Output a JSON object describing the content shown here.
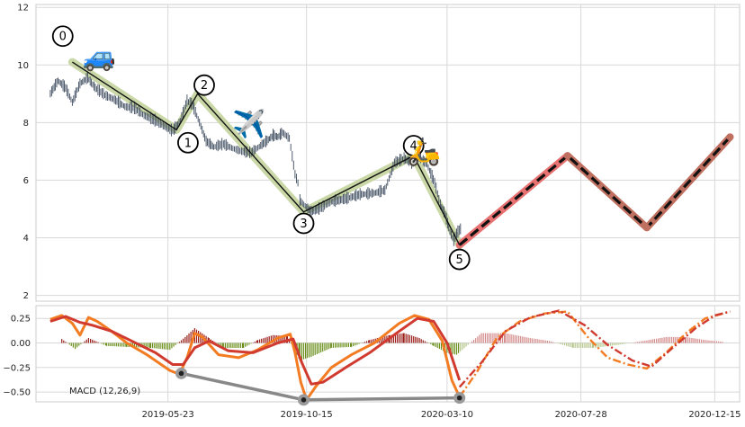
{
  "chart_data": [
    {
      "type": "line",
      "subtype": "price-with-wave-pattern",
      "title": "",
      "xlabel": "",
      "ylabel": "",
      "ylim": [
        1.8,
        12.1
      ],
      "yticks": [
        2,
        4,
        6,
        8,
        10,
        12
      ],
      "grid": true,
      "legend": "none",
      "series": [
        {
          "role": "price-candles",
          "points": [
            [
              "2019-01-20",
              9.0
            ],
            [
              "2019-01-28",
              9.45
            ],
            [
              "2019-02-05",
              9.2
            ],
            [
              "2019-02-12",
              8.7
            ],
            [
              "2019-02-20",
              9.35
            ],
            [
              "2019-02-28",
              9.55
            ],
            [
              "2019-03-08",
              9.2
            ],
            [
              "2019-03-18",
              8.95
            ],
            [
              "2019-03-28",
              8.8
            ],
            [
              "2019-04-08",
              8.55
            ],
            [
              "2019-04-18",
              8.5
            ],
            [
              "2019-04-28",
              8.25
            ],
            [
              "2019-05-08",
              8.1
            ],
            [
              "2019-05-18",
              7.9
            ],
            [
              "2019-05-28",
              7.7
            ],
            [
              "2019-06-05",
              8.05
            ],
            [
              "2019-06-12",
              8.75
            ],
            [
              "2019-06-18",
              8.6
            ],
            [
              "2019-06-25",
              8.0
            ],
            [
              "2019-07-02",
              7.35
            ],
            [
              "2019-07-10",
              7.15
            ],
            [
              "2019-07-20",
              7.25
            ],
            [
              "2019-07-30",
              7.1
            ],
            [
              "2019-08-08",
              7.0
            ],
            [
              "2019-08-18",
              6.95
            ],
            [
              "2019-08-28",
              7.2
            ],
            [
              "2019-09-05",
              7.4
            ],
            [
              "2019-09-10",
              7.55
            ],
            [
              "2019-09-15",
              7.5
            ],
            [
              "2019-09-20",
              7.65
            ],
            [
              "2019-09-27",
              7.45
            ],
            [
              "2019-10-03",
              6.2
            ],
            [
              "2019-10-06",
              5.9
            ],
            [
              "2019-10-08",
              5.3
            ],
            [
              "2019-10-15",
              5.05
            ],
            [
              "2019-10-20",
              4.9
            ],
            [
              "2019-10-28",
              5.0
            ],
            [
              "2019-11-10",
              5.25
            ],
            [
              "2019-11-25",
              5.35
            ],
            [
              "2019-12-10",
              5.5
            ],
            [
              "2019-12-25",
              5.55
            ],
            [
              "2020-01-05",
              5.65
            ],
            [
              "2020-01-15",
              6.6
            ],
            [
              "2020-01-25",
              6.75
            ],
            [
              "2020-02-02",
              6.6
            ],
            [
              "2020-02-10",
              6.8
            ],
            [
              "2020-02-18",
              6.55
            ],
            [
              "2020-02-26",
              5.9
            ],
            [
              "2020-03-03",
              5.15
            ],
            [
              "2020-03-08",
              4.8
            ],
            [
              "2020-03-13",
              4.2
            ],
            [
              "2020-03-17",
              3.9
            ],
            [
              "2020-03-20",
              4.15
            ],
            [
              "2020-03-24",
              4.3
            ],
            [
              "2020-03-26",
              4.1
            ]
          ]
        },
        {
          "role": "historical-wave",
          "color": "#111111",
          "band_color": "#c9d8a6",
          "points": [
            [
              "2019-02-12",
              10.1
            ],
            [
              "2019-06-01",
              7.75
            ],
            [
              "2019-06-23",
              9.0
            ],
            [
              "2019-10-12",
              4.9
            ],
            [
              "2020-02-04",
              6.85
            ],
            [
              "2020-03-23",
              3.75
            ]
          ]
        },
        {
          "role": "projected-wave",
          "color": "#111111",
          "band_color_first": "#e87272",
          "band_color": "#c07060",
          "dash": true,
          "points": [
            [
              "2020-03-23",
              3.75
            ],
            [
              "2020-07-14",
              6.85
            ],
            [
              "2020-10-05",
              4.35
            ],
            [
              "2020-12-31",
              7.5
            ]
          ]
        }
      ],
      "wave_labels": [
        {
          "label": "0",
          "date": "2019-02-02",
          "y": 11.0
        },
        {
          "label": "1",
          "date": "2019-06-13",
          "y": 7.3
        },
        {
          "label": "2",
          "date": "2019-06-30",
          "y": 9.3
        },
        {
          "label": "3",
          "date": "2019-10-12",
          "y": 4.5
        },
        {
          "label": "4",
          "date": "2020-02-04",
          "y": 7.2
        },
        {
          "label": "5",
          "date": "2020-03-23",
          "y": 3.25
        }
      ],
      "emoji": [
        {
          "name": "car-icon",
          "glyph": "🚙",
          "date": "2019-03-12",
          "y": 10.25
        },
        {
          "name": "airplane-icon",
          "glyph": "✈️",
          "date": "2019-08-16",
          "y": 7.9
        },
        {
          "name": "scooter-icon",
          "glyph": "🛵",
          "date": "2020-02-15",
          "y": 6.95
        }
      ]
    },
    {
      "type": "line",
      "subtype": "macd",
      "title": "",
      "annotation": "MACD (12,26,9)",
      "ylim": [
        -0.6,
        0.38
      ],
      "yticks": [
        0.25,
        0.0,
        -0.25,
        -0.5
      ],
      "ytick_labels": [
        "0.25",
        "0.00",
        "−0.25",
        "−0.50"
      ],
      "x_ticks": [
        "2019-05-23",
        "2019-10-15",
        "2020-03-10",
        "2020-07-28",
        "2020-12-15"
      ],
      "grid": true,
      "series": [
        {
          "role": "macd-line",
          "color": "#f37c22",
          "points": [
            [
              "2019-01-20",
              0.24
            ],
            [
              "2019-02-01",
              0.28
            ],
            [
              "2019-02-12",
              0.2
            ],
            [
              "2019-02-20",
              0.08
            ],
            [
              "2019-03-01",
              0.26
            ],
            [
              "2019-03-10",
              0.22
            ],
            [
              "2019-03-25",
              0.12
            ],
            [
              "2019-04-10",
              0.0
            ],
            [
              "2019-05-01",
              -0.12
            ],
            [
              "2019-05-25",
              -0.28
            ],
            [
              "2019-06-04",
              -0.32
            ],
            [
              "2019-06-12",
              -0.15
            ],
            [
              "2019-06-20",
              0.1
            ],
            [
              "2019-06-28",
              0.06
            ],
            [
              "2019-07-15",
              -0.12
            ],
            [
              "2019-08-05",
              -0.15
            ],
            [
              "2019-08-25",
              -0.07
            ],
            [
              "2019-09-15",
              0.05
            ],
            [
              "2019-09-28",
              0.09
            ],
            [
              "2019-10-03",
              -0.1
            ],
            [
              "2019-10-09",
              -0.4
            ],
            [
              "2019-10-15",
              -0.58
            ],
            [
              "2019-10-25",
              -0.44
            ],
            [
              "2019-11-10",
              -0.25
            ],
            [
              "2019-12-01",
              -0.12
            ],
            [
              "2019-12-25",
              0.0
            ],
            [
              "2020-01-20",
              0.2
            ],
            [
              "2020-02-05",
              0.28
            ],
            [
              "2020-02-20",
              0.24
            ],
            [
              "2020-03-05",
              0.02
            ],
            [
              "2020-03-15",
              -0.38
            ],
            [
              "2020-03-23",
              -0.55
            ]
          ]
        },
        {
          "role": "signal-line",
          "color": "#d03a2f",
          "points": [
            [
              "2019-01-20",
              0.22
            ],
            [
              "2019-02-05",
              0.27
            ],
            [
              "2019-02-20",
              0.21
            ],
            [
              "2019-03-05",
              0.18
            ],
            [
              "2019-03-25",
              0.12
            ],
            [
              "2019-04-15",
              0.02
            ],
            [
              "2019-05-10",
              -0.1
            ],
            [
              "2019-05-28",
              -0.22
            ],
            [
              "2019-06-08",
              -0.22
            ],
            [
              "2019-06-20",
              -0.05
            ],
            [
              "2019-07-05",
              0.02
            ],
            [
              "2019-07-25",
              -0.08
            ],
            [
              "2019-08-20",
              -0.1
            ],
            [
              "2019-09-15",
              0.0
            ],
            [
              "2019-10-01",
              0.04
            ],
            [
              "2019-10-10",
              -0.2
            ],
            [
              "2019-10-20",
              -0.42
            ],
            [
              "2019-11-01",
              -0.4
            ],
            [
              "2019-11-25",
              -0.25
            ],
            [
              "2019-12-20",
              -0.1
            ],
            [
              "2020-01-20",
              0.12
            ],
            [
              "2020-02-08",
              0.25
            ],
            [
              "2020-02-25",
              0.22
            ],
            [
              "2020-03-10",
              0.0
            ],
            [
              "2020-03-23",
              -0.38
            ]
          ]
        },
        {
          "role": "macd-projection",
          "color": "#f37c22",
          "dash": true,
          "points": [
            [
              "2020-03-23",
              -0.55
            ],
            [
              "2020-04-10",
              -0.3
            ],
            [
              "2020-05-01",
              0.05
            ],
            [
              "2020-05-25",
              0.22
            ],
            [
              "2020-06-20",
              0.3
            ],
            [
              "2020-07-14",
              0.32
            ],
            [
              "2020-08-05",
              0.05
            ],
            [
              "2020-08-25",
              -0.15
            ],
            [
              "2020-09-15",
              -0.22
            ],
            [
              "2020-10-05",
              -0.26
            ],
            [
              "2020-10-25",
              -0.1
            ],
            [
              "2020-11-15",
              0.1
            ],
            [
              "2020-12-05",
              0.25
            ],
            [
              "2020-12-31",
              0.32
            ]
          ]
        },
        {
          "role": "signal-projection",
          "color": "#d03a2f",
          "dash": true,
          "points": [
            [
              "2020-03-23",
              -0.45
            ],
            [
              "2020-04-15",
              -0.2
            ],
            [
              "2020-05-10",
              0.12
            ],
            [
              "2020-06-05",
              0.26
            ],
            [
              "2020-07-05",
              0.33
            ],
            [
              "2020-08-01",
              0.18
            ],
            [
              "2020-08-25",
              -0.02
            ],
            [
              "2020-09-20",
              -0.18
            ],
            [
              "2020-10-10",
              -0.24
            ],
            [
              "2020-11-01",
              -0.05
            ],
            [
              "2020-11-25",
              0.15
            ],
            [
              "2020-12-15",
              0.28
            ],
            [
              "2020-12-31",
              0.32
            ]
          ]
        },
        {
          "role": "divergence-line",
          "color": "#888888",
          "points": [
            [
              "2019-06-06",
              -0.31
            ],
            [
              "2019-10-12",
              -0.58
            ],
            [
              "2020-03-23",
              -0.56
            ]
          ]
        }
      ],
      "histogram": [
        [
          "2019-02-01",
          0.04
        ],
        [
          "2019-02-15",
          -0.06
        ],
        [
          "2019-03-01",
          0.05
        ],
        [
          "2019-03-20",
          -0.03
        ],
        [
          "2019-04-10",
          -0.04
        ],
        [
          "2019-05-05",
          -0.05
        ],
        [
          "2019-05-25",
          -0.07
        ],
        [
          "2019-06-10",
          0.06
        ],
        [
          "2019-06-20",
          0.15
        ],
        [
          "2019-07-05",
          0.05
        ],
        [
          "2019-07-20",
          -0.05
        ],
        [
          "2019-08-10",
          -0.05
        ],
        [
          "2019-08-25",
          0.03
        ],
        [
          "2019-09-10",
          0.08
        ],
        [
          "2019-09-25",
          0.07
        ],
        [
          "2019-10-08",
          -0.18
        ],
        [
          "2019-10-20",
          -0.14
        ],
        [
          "2019-11-10",
          -0.05
        ],
        [
          "2019-12-01",
          -0.04
        ],
        [
          "2019-12-20",
          0.03
        ],
        [
          "2020-01-10",
          0.08
        ],
        [
          "2020-01-25",
          0.1
        ],
        [
          "2020-02-10",
          0.05
        ],
        [
          "2020-02-25",
          -0.03
        ],
        [
          "2020-03-10",
          -0.1
        ],
        [
          "2020-03-20",
          -0.12
        ],
        [
          "2020-04-15",
          0.1
        ],
        [
          "2020-05-10",
          0.1
        ],
        [
          "2020-06-05",
          0.05
        ],
        [
          "2020-06-25",
          0.02
        ],
        [
          "2020-07-20",
          -0.05
        ],
        [
          "2020-08-10",
          -0.05
        ],
        [
          "2020-09-05",
          -0.02
        ],
        [
          "2020-10-01",
          0.02
        ],
        [
          "2020-10-25",
          0.06
        ],
        [
          "2020-11-15",
          0.06
        ],
        [
          "2020-12-05",
          0.03
        ],
        [
          "2020-12-25",
          0.01
        ]
      ],
      "histogram_colors": {
        "positive": "#9a1f1a",
        "negative": "#6a8e1a",
        "positive_projected": "#d48a8a",
        "negative_projected": "#b5c58a"
      },
      "divergence_markers": [
        {
          "date": "2019-06-06",
          "y": -0.31
        },
        {
          "date": "2019-10-12",
          "y": -0.58
        },
        {
          "date": "2020-03-23",
          "y": -0.56
        }
      ]
    }
  ]
}
